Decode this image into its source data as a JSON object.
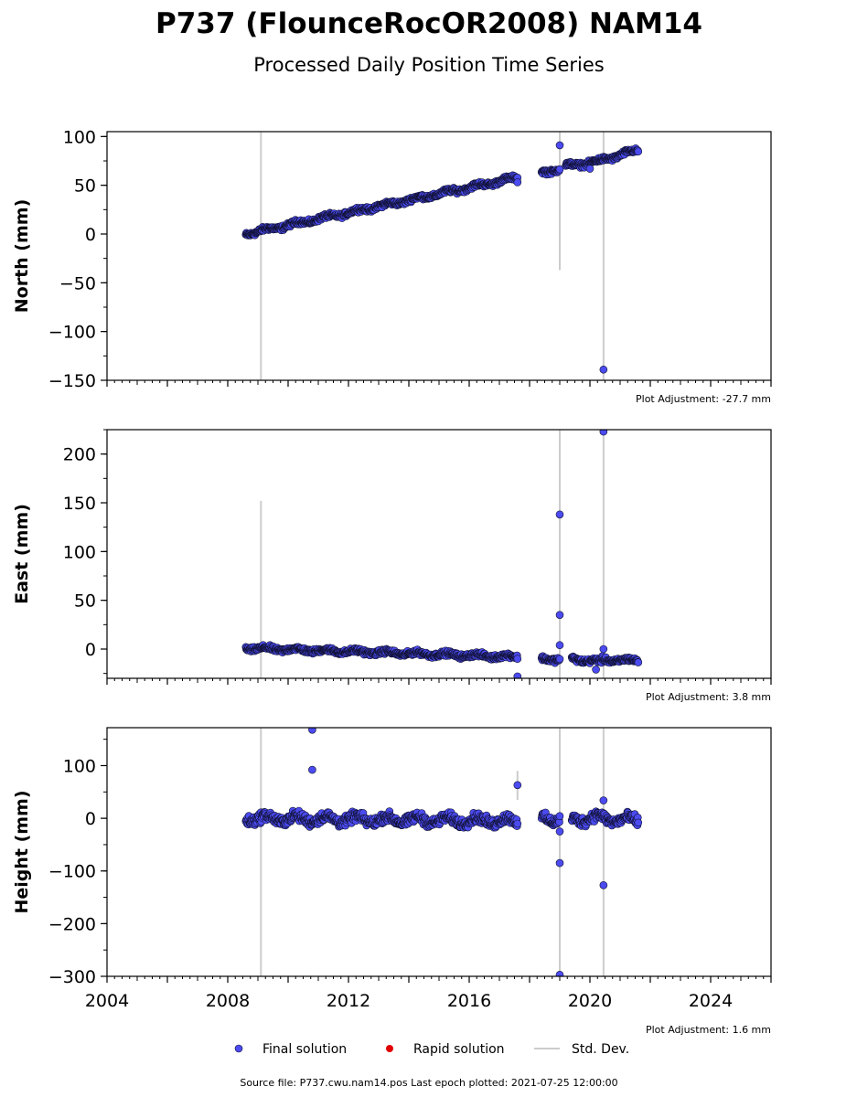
{
  "title": "P737 (FlounceRocOR2008) NAM14",
  "subtitle": "Processed Daily Position Time Series",
  "source_note": "Source file: P737.cwu.nam14.pos  Last epoch plotted: 2021-07-25 12:00:00",
  "legend": {
    "final": "Final solution",
    "rapid": "Rapid solution",
    "stddev": "Std. Dev."
  },
  "colors": {
    "final_fill": "#4b4bf0",
    "final_edge": "#111133",
    "rapid": "#e00000",
    "stddev": "#cccccc"
  },
  "chart_data": [
    {
      "type": "scatter",
      "component": "north",
      "ylabel": "North (mm)",
      "adjustment": "Plot Adjustment: -27.7 mm",
      "xlim": [
        2004,
        2026
      ],
      "ylim": [
        -150,
        105
      ],
      "yticks": [
        -150,
        -100,
        -50,
        0,
        50,
        100
      ],
      "ytick_labels": [
        "−150",
        "−100",
        "−50",
        "0",
        "50",
        "100"
      ],
      "trend_segments": [
        {
          "x0": 2008.6,
          "x1": 2017.6,
          "y0": 0,
          "y1": 58
        },
        {
          "x0": 2018.4,
          "x1": 2019.0,
          "y0": 63,
          "y1": 67
        },
        {
          "x0": 2019.2,
          "x1": 2020.4,
          "y0": 70,
          "y1": 75
        },
        {
          "x0": 2020.4,
          "x1": 2021.6,
          "y0": 76,
          "y1": 86
        }
      ],
      "noise": 2.5,
      "outliers": [
        {
          "x": 2019.0,
          "y": 91
        },
        {
          "x": 2020.45,
          "y": -139
        },
        {
          "x": 2020.0,
          "y": 67
        },
        {
          "x": 2017.6,
          "y": 53
        }
      ],
      "error_bars": [
        {
          "x": 2009.1,
          "y0": -150,
          "y1": 105
        },
        {
          "x": 2019.0,
          "y0": -37,
          "y1": 105
        },
        {
          "x": 2020.45,
          "y0": -150,
          "y1": 105
        }
      ]
    },
    {
      "type": "scatter",
      "component": "east",
      "ylabel": "East (mm)",
      "adjustment": "Plot Adjustment: 3.8 mm",
      "xlim": [
        2004,
        2026
      ],
      "ylim": [
        -30,
        225
      ],
      "yticks": [
        0,
        50,
        100,
        150,
        200
      ],
      "ytick_labels": [
        "0",
        "50",
        "100",
        "150",
        "200"
      ],
      "trend_segments": [
        {
          "x0": 2008.6,
          "x1": 2017.6,
          "y0": 1,
          "y1": -8
        },
        {
          "x0": 2018.4,
          "x1": 2019.0,
          "y0": -10,
          "y1": -10
        },
        {
          "x0": 2019.4,
          "x1": 2020.4,
          "y0": -10,
          "y1": -13
        },
        {
          "x0": 2020.4,
          "x1": 2021.6,
          "y0": -11,
          "y1": -12
        }
      ],
      "noise": 2.5,
      "outliers": [
        {
          "x": 2019.0,
          "y": 138
        },
        {
          "x": 2019.0,
          "y": 35
        },
        {
          "x": 2019.0,
          "y": 4
        },
        {
          "x": 2020.45,
          "y": 223
        },
        {
          "x": 2020.45,
          "y": 0
        },
        {
          "x": 2017.6,
          "y": -28
        },
        {
          "x": 2020.2,
          "y": -21
        }
      ],
      "error_bars": [
        {
          "x": 2009.1,
          "y0": -30,
          "y1": 152
        },
        {
          "x": 2019.0,
          "y0": -30,
          "y1": 225
        },
        {
          "x": 2020.45,
          "y0": -30,
          "y1": 225
        }
      ]
    },
    {
      "type": "scatter",
      "component": "height",
      "ylabel": "Height (mm)",
      "adjustment": "Plot Adjustment: 1.6 mm",
      "xlim": [
        2004,
        2026
      ],
      "ylim": [
        -300,
        172
      ],
      "yticks": [
        -300,
        -200,
        -100,
        0,
        100
      ],
      "ytick_labels": [
        "−300",
        "−200",
        "−100",
        "0",
        "100"
      ],
      "xticks": [
        2004,
        2008,
        2012,
        2016,
        2020,
        2024
      ],
      "xtick_labels": [
        "2004",
        "2008",
        "2012",
        "2016",
        "2020",
        "2024"
      ],
      "trend_segments": [
        {
          "x0": 2008.6,
          "x1": 2017.6,
          "y0": 0,
          "y1": -5
        },
        {
          "x0": 2018.4,
          "x1": 2019.0,
          "y0": 0,
          "y1": -2
        },
        {
          "x0": 2019.4,
          "x1": 2020.4,
          "y0": -2,
          "y1": 2
        },
        {
          "x0": 2020.4,
          "x1": 2021.6,
          "y0": 0,
          "y1": -5
        }
      ],
      "noise": 10,
      "outliers": [
        {
          "x": 2010.8,
          "y": 168
        },
        {
          "x": 2010.8,
          "y": 92
        },
        {
          "x": 2017.6,
          "y": 63
        },
        {
          "x": 2019.0,
          "y": -85
        },
        {
          "x": 2019.0,
          "y": -297
        },
        {
          "x": 2019.0,
          "y": -25
        },
        {
          "x": 2020.45,
          "y": -127
        },
        {
          "x": 2020.45,
          "y": 34
        }
      ],
      "error_bars": [
        {
          "x": 2009.1,
          "y0": -300,
          "y1": 172
        },
        {
          "x": 2019.0,
          "y0": -300,
          "y1": 172
        },
        {
          "x": 2020.45,
          "y0": -300,
          "y1": 172
        },
        {
          "x": 2017.6,
          "y0": 35,
          "y1": 90
        }
      ]
    }
  ]
}
